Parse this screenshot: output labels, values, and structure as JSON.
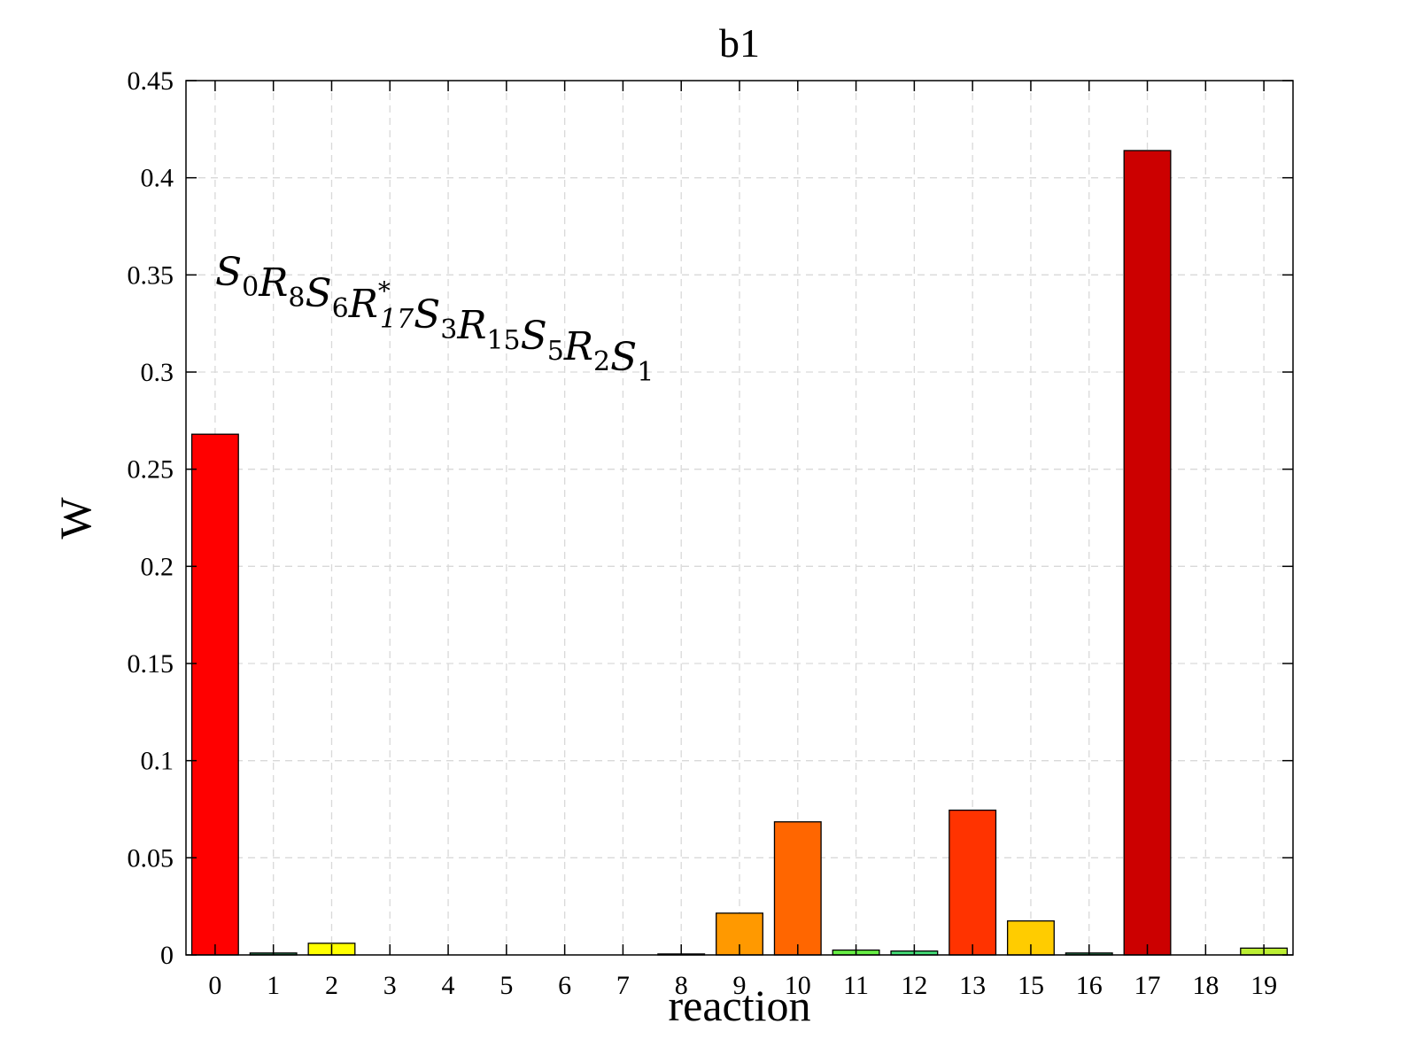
{
  "chart_data": {
    "type": "bar",
    "title": "b1",
    "xlabel": "reaction",
    "ylabel": "W",
    "categories": [
      "0",
      "1",
      "2",
      "3",
      "4",
      "5",
      "6",
      "7",
      "8",
      "9",
      "10",
      "11",
      "12",
      "13",
      "15",
      "16",
      "17",
      "18",
      "19"
    ],
    "values": [
      0.268,
      0.001,
      0.006,
      0,
      0,
      0,
      0,
      0,
      0.0005,
      0.0215,
      0.0685,
      0.0025,
      0.002,
      0.0745,
      0.0175,
      0.001,
      0.414,
      0,
      0.0035
    ],
    "colors": [
      "#ff0000",
      "#2e8b57",
      "#ffff00",
      "#ffffff",
      "#ffffff",
      "#ffffff",
      "#ffffff",
      "#ffffff",
      "#1e5a3a",
      "#ff9900",
      "#ff6600",
      "#66ee44",
      "#44dd77",
      "#ff3300",
      "#ffcc00",
      "#2e8b57",
      "#cc0000",
      "#ffffff",
      "#bbee33"
    ],
    "ylim": [
      0,
      0.45
    ],
    "yticks": [
      0,
      0.05,
      0.1,
      0.15,
      0.2,
      0.25,
      0.3,
      0.35,
      0.4,
      0.45
    ],
    "ytick_labels": [
      "0",
      "0.05",
      "0.1",
      "0.15",
      "0.2",
      "0.25",
      "0.3",
      "0.35",
      "0.4",
      "0.45"
    ],
    "grid": true,
    "annotation": {
      "parts": [
        {
          "base": "S",
          "sub": "0"
        },
        {
          "base": "R",
          "sub": "8"
        },
        {
          "base": "S",
          "sub": "6"
        },
        {
          "base": "R",
          "sub": "17",
          "sup": "*"
        },
        {
          "base": "S",
          "sub": "3"
        },
        {
          "base": "R",
          "sub": "15"
        },
        {
          "base": "S",
          "sub": "5"
        },
        {
          "base": "R",
          "sub": "2"
        },
        {
          "base": "S",
          "sub": "1"
        }
      ]
    }
  }
}
